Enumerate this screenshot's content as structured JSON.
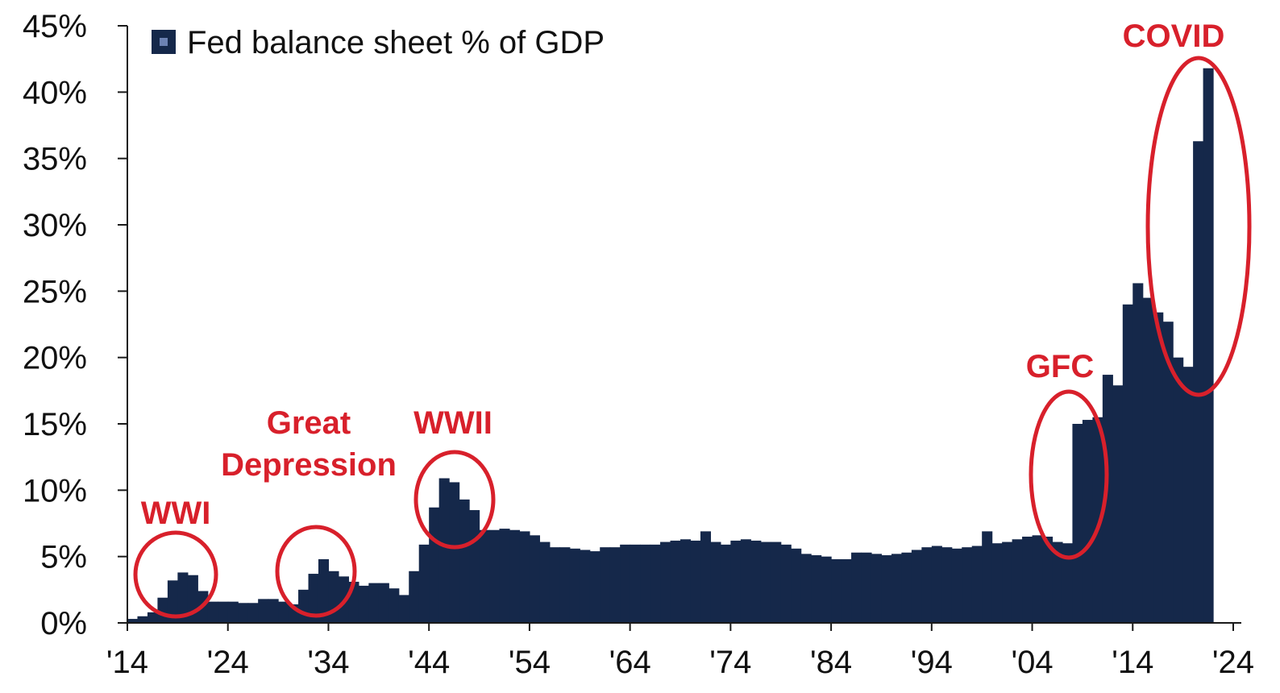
{
  "chart_data": {
    "type": "bar",
    "legend": {
      "label": "Fed balance sheet % of GDP",
      "placement": "top-left"
    },
    "colors": {
      "bar": "#15284a",
      "annotation": "#d8202b",
      "axis": "#1a1a1a"
    },
    "ylim": [
      0,
      45
    ],
    "y_ticks": [
      "0%",
      "5%",
      "10%",
      "15%",
      "20%",
      "25%",
      "30%",
      "35%",
      "40%",
      "45%"
    ],
    "y_tick_values": [
      0,
      5,
      10,
      15,
      20,
      25,
      30,
      35,
      40,
      45
    ],
    "xlim": [
      1914,
      2024
    ],
    "x_ticks": [
      "'14",
      "'24",
      "'34",
      "'44",
      "'54",
      "'64",
      "'74",
      "'84",
      "'94",
      "'04",
      "'14",
      "'24"
    ],
    "x_tick_values": [
      1914,
      1924,
      1934,
      1944,
      1954,
      1964,
      1974,
      1984,
      1994,
      2004,
      2014,
      2024
    ],
    "grid": false,
    "x": [
      1914,
      1915,
      1916,
      1917,
      1918,
      1919,
      1920,
      1921,
      1922,
      1923,
      1924,
      1925,
      1926,
      1927,
      1928,
      1929,
      1930,
      1931,
      1932,
      1933,
      1934,
      1935,
      1936,
      1937,
      1938,
      1939,
      1940,
      1941,
      1942,
      1943,
      1944,
      1945,
      1946,
      1947,
      1948,
      1949,
      1950,
      1951,
      1952,
      1953,
      1954,
      1955,
      1956,
      1957,
      1958,
      1959,
      1960,
      1961,
      1962,
      1963,
      1964,
      1965,
      1966,
      1967,
      1968,
      1969,
      1970,
      1971,
      1972,
      1973,
      1974,
      1975,
      1976,
      1977,
      1978,
      1979,
      1980,
      1981,
      1982,
      1983,
      1984,
      1985,
      1986,
      1987,
      1988,
      1989,
      1990,
      1991,
      1992,
      1993,
      1994,
      1995,
      1996,
      1997,
      1998,
      1999,
      2000,
      2001,
      2002,
      2003,
      2004,
      2005,
      2006,
      2007,
      2008,
      2009,
      2010,
      2011,
      2012,
      2013,
      2014,
      2015,
      2016,
      2017,
      2018,
      2019,
      2020,
      2021
    ],
    "values": [
      0.3,
      0.5,
      0.8,
      1.9,
      3.2,
      3.8,
      3.6,
      2.4,
      1.6,
      1.6,
      1.6,
      1.5,
      1.5,
      1.8,
      1.8,
      1.6,
      1.4,
      2.5,
      3.7,
      4.8,
      3.9,
      3.5,
      3.1,
      2.8,
      3.0,
      3.0,
      2.6,
      2.1,
      3.9,
      5.9,
      8.7,
      10.9,
      10.6,
      9.3,
      8.5,
      7.0,
      7.0,
      7.1,
      7.0,
      6.9,
      6.6,
      6.1,
      5.7,
      5.7,
      5.6,
      5.5,
      5.4,
      5.7,
      5.7,
      5.9,
      5.9,
      5.9,
      5.9,
      6.1,
      6.2,
      6.3,
      6.2,
      6.9,
      6.1,
      5.9,
      6.2,
      6.3,
      6.2,
      6.1,
      6.1,
      5.9,
      5.6,
      5.2,
      5.1,
      5.0,
      4.8,
      4.8,
      5.3,
      5.3,
      5.2,
      5.1,
      5.2,
      5.3,
      5.5,
      5.7,
      5.8,
      5.7,
      5.6,
      5.7,
      5.8,
      6.9,
      6.0,
      6.1,
      6.3,
      6.5,
      6.6,
      6.5,
      6.1,
      6.0,
      15.0,
      15.3,
      15.5,
      18.7,
      17.9,
      24.0,
      25.6,
      24.5,
      23.4,
      22.7,
      20.0,
      19.3,
      36.3,
      41.8
    ]
  },
  "annotations": [
    {
      "id": "wwi",
      "lines": [
        "WWI"
      ]
    },
    {
      "id": "great-depression",
      "lines": [
        "Great",
        "Depression"
      ]
    },
    {
      "id": "wwii",
      "lines": [
        "WWII"
      ]
    },
    {
      "id": "gfc",
      "lines": [
        "GFC"
      ]
    },
    {
      "id": "covid",
      "lines": [
        "COVID"
      ]
    }
  ]
}
